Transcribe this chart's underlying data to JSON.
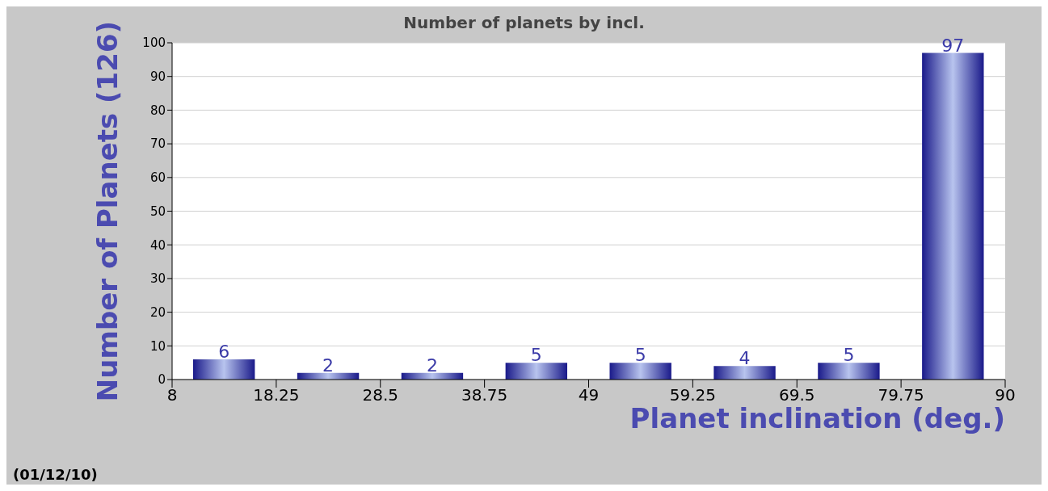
{
  "chart_data": {
    "type": "histogram",
    "title": "Number of planets by incl.",
    "xlabel": "Planet inclination (deg.)",
    "ylabel": "Number of Planets (126)",
    "bins": [
      8,
      18.25,
      28.5,
      38.75,
      49,
      59.25,
      69.5,
      79.75,
      90
    ],
    "values": [
      6,
      2,
      2,
      5,
      5,
      4,
      5,
      97
    ],
    "color": "#1a1a8a",
    "xlim": [
      8,
      90
    ],
    "xticks": [
      8,
      18.25,
      28.5,
      38.75,
      49,
      59.25,
      69.5,
      79.75,
      90
    ],
    "ylim": [
      0,
      100
    ],
    "yticks": [
      0,
      10,
      20,
      30,
      40,
      50,
      60,
      70,
      80,
      90,
      100
    ],
    "grid": "y",
    "data_labels": true,
    "annotations": [
      "(01/12/10)"
    ]
  }
}
